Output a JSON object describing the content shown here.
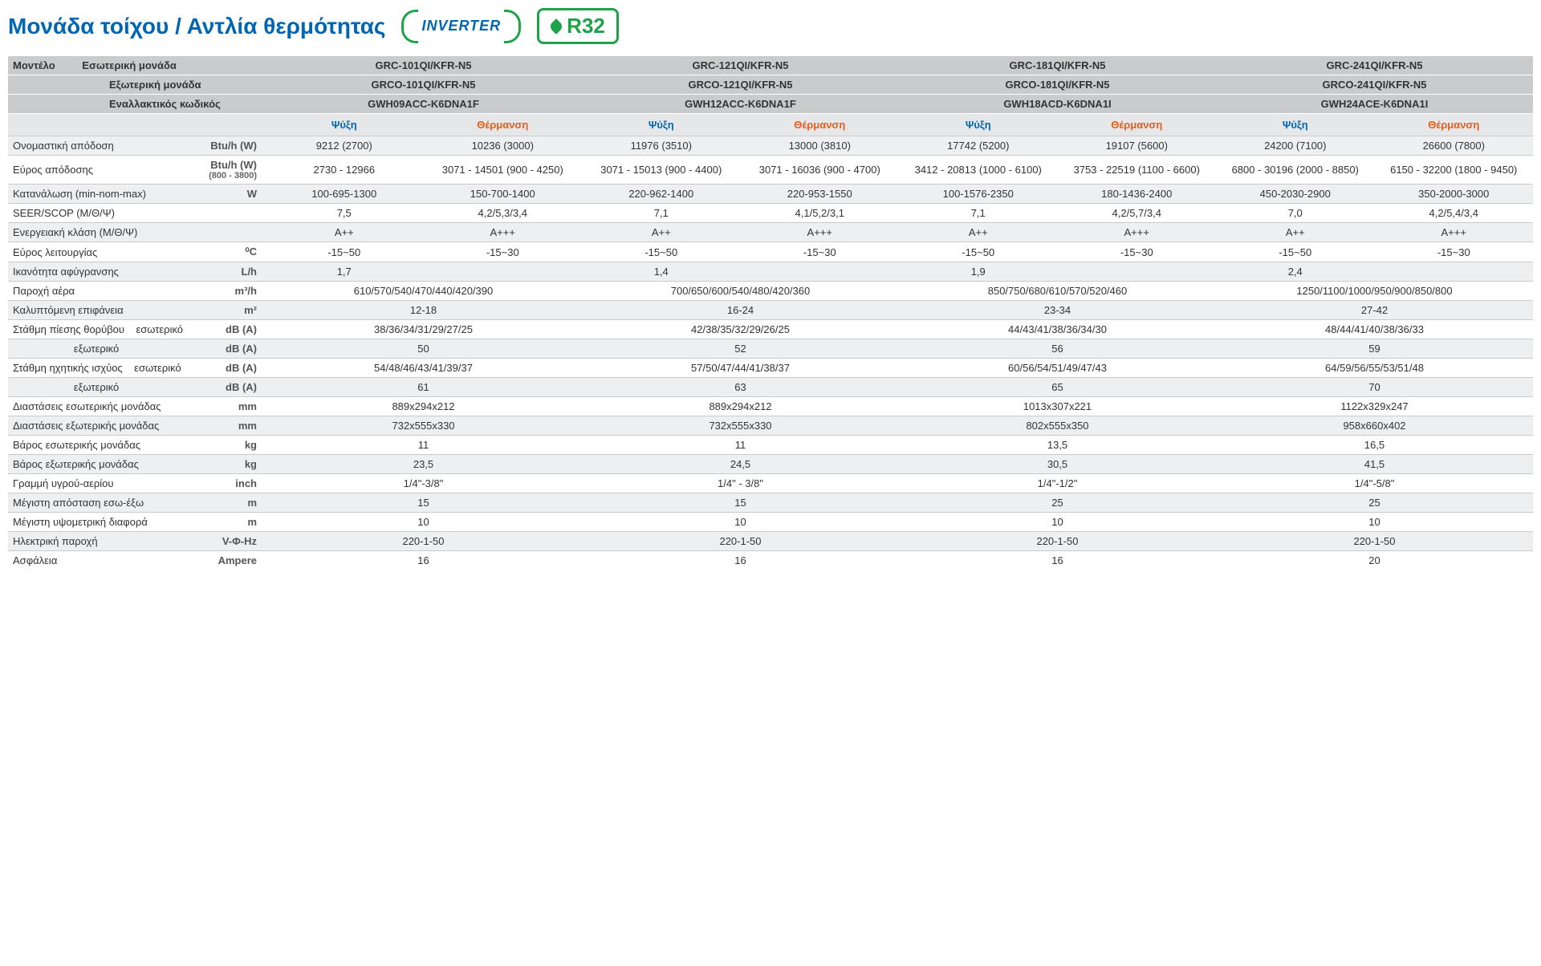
{
  "title": "Μονάδα τοίχου / Αντλία θερμότητας",
  "badges": {
    "inverter": "INVERTER",
    "r32": "32"
  },
  "header": {
    "model_label": "Μοντέλο",
    "rows": [
      {
        "label": "Εσωτερική μονάδα",
        "vals": [
          "GRC-101QI/KFR-N5",
          "GRC-121QI/KFR-N5",
          "GRC-181QI/KFR-N5",
          "GRC-241QI/KFR-N5"
        ]
      },
      {
        "label": "Εξωτερική μονάδα",
        "vals": [
          "GRCO-101QI/KFR-N5",
          "GRCO-121QI/KFR-N5",
          "GRCO-181QI/KFR-N5",
          "GRCO-241QI/KFR-N5"
        ]
      },
      {
        "label": "Εναλλακτικός κωδικός",
        "vals": [
          "GWH09ACC-K6DNA1F",
          "GWH12ACC-K6DNA1F",
          "GWH18ACD-K6DNA1I",
          "GWH24ACE-K6DNA1I"
        ]
      }
    ]
  },
  "modes": {
    "cool": "Ψύξη",
    "heat": "Θέρμανση"
  },
  "rows_split": [
    {
      "label": "Ονομαστική απόδοση",
      "unit": "Btu/h (W)",
      "vals": [
        "9212 (2700)",
        "10236 (3000)",
        "11976 (3510)",
        "13000 (3810)",
        "17742 (5200)",
        "19107 (5600)",
        "24200 (7100)",
        "26600 (7800)"
      ]
    },
    {
      "label": "Εύρος απόδοσης",
      "unit": "Btu/h (W)",
      "unit_note": "(800 - 3800)",
      "vals": [
        "2730 - 12966",
        "3071 - 14501 (900 - 4250)",
        "3071 - 15013 (900 - 4400)",
        "3071 - 16036 (900 - 4700)",
        "3412 - 20813 (1000 - 6100)",
        "3753 - 22519 (1100 - 6600)",
        "6800 - 30196 (2000 - 8850)",
        "6150 - 32200 (1800 - 9450)"
      ]
    },
    {
      "label": "Κατανάλωση (min-nom-max)",
      "unit": "W",
      "vals": [
        "100-695-1300",
        "150-700-1400",
        "220-962-1400",
        "220-953-1550",
        "100-1576-2350",
        "180-1436-2400",
        "450-2030-2900",
        "350-2000-3000"
      ]
    },
    {
      "label": "SEER/SCOP (Μ/Θ/Ψ)",
      "unit": "",
      "vals": [
        "7,5",
        "4,2/5,3/3,4",
        "7,1",
        "4,1/5,2/3,1",
        "7,1",
        "4,2/5,7/3,4",
        "7,0",
        "4,2/5,4/3,4"
      ]
    },
    {
      "label": "Ενεργειακή κλάση (Μ/Θ/Ψ)",
      "unit": "",
      "vals": [
        "A++",
        "A+++",
        "A++",
        "A+++",
        "A++",
        "A+++",
        "A++",
        "A+++"
      ]
    },
    {
      "label": "Εύρος λειτουργίας",
      "unit": "⁰C",
      "vals": [
        "-15~50",
        "-15~30",
        "-15~50",
        "-15~30",
        "-15~50",
        "-15~30",
        "-15~50",
        "-15~30"
      ]
    }
  ],
  "rows_span2_first": [
    {
      "label": "Ικανότητα αφύγρανσης",
      "unit": "L/h",
      "vals": [
        "1,7",
        "",
        "1,4",
        "",
        "1,9",
        "",
        "2,4",
        ""
      ]
    }
  ],
  "rows_merged": [
    {
      "label": "Παροχή αέρα",
      "unit": "m³/h",
      "vals": [
        "610/570/540/470/440/420/390",
        "700/650/600/540/480/420/360",
        "850/750/680/610/570/520/460",
        "1250/1100/1000/950/900/850/800"
      ]
    },
    {
      "label": "Καλυπτόμενη επιφάνεια",
      "unit": "m²",
      "vals": [
        "12-18",
        "16-24",
        "23-34",
        "27-42"
      ]
    },
    {
      "label": "Στάθμη πίεσης θορύβου    εσωτερικό",
      "unit": "dB (A)",
      "vals": [
        "38/36/34/31/29/27/25",
        "42/38/35/32/29/26/25",
        "44/43/41/38/36/34/30",
        "48/44/41/40/38/36/33"
      ]
    },
    {
      "label": "                     εξωτερικό",
      "unit": "dB (A)",
      "vals": [
        "50",
        "52",
        "56",
        "59"
      ]
    },
    {
      "label": "Στάθμη ηχητικής ισχύος    εσωτερικό",
      "unit": "dB (A)",
      "vals": [
        "54/48/46/43/41/39/37",
        "57/50/47/44/41/38/37",
        "60/56/54/51/49/47/43",
        "64/59/56/55/53/51/48"
      ]
    },
    {
      "label": "                     εξωτερικό",
      "unit": "dB (A)",
      "vals": [
        "61",
        "63",
        "65",
        "70"
      ]
    },
    {
      "label": "Διαστάσεις εσωτερικής μονάδας",
      "unit": "mm",
      "vals": [
        "889x294x212",
        "889x294x212",
        "1013x307x221",
        "1122x329x247"
      ]
    },
    {
      "label": "Διαστάσεις εξωτερικής μονάδας",
      "unit": "mm",
      "vals": [
        "732x555x330",
        "732x555x330",
        "802x555x350",
        "958x660x402"
      ]
    },
    {
      "label": "Βάρος εσωτερικής μονάδας",
      "unit": "kg",
      "vals": [
        "11",
        "11",
        "13,5",
        "16,5"
      ]
    },
    {
      "label": "Βάρος εξωτερικής μονάδας",
      "unit": "kg",
      "vals": [
        "23,5",
        "24,5",
        "30,5",
        "41,5"
      ]
    },
    {
      "label": "Γραμμή υγρού-αερίου",
      "unit": "inch",
      "vals": [
        "1/4\"-3/8\"",
        "1/4\" - 3/8\"",
        "1/4\"-1/2\"",
        "1/4\"-5/8\""
      ]
    },
    {
      "label": "Μέγιστη απόσταση εσω-έξω",
      "unit": "m",
      "vals": [
        "15",
        "15",
        "25",
        "25"
      ]
    },
    {
      "label": "Μέγιστη υψομετρική διαφορά",
      "unit": "m",
      "vals": [
        "10",
        "10",
        "10",
        "10"
      ]
    },
    {
      "label": "Ηλεκτρική παροχή",
      "unit": "V-Φ-Hz",
      "vals": [
        "220-1-50",
        "220-1-50",
        "220-1-50",
        "220-1-50"
      ]
    },
    {
      "label": "Ασφάλεια",
      "unit": "Ampere",
      "vals": [
        "16",
        "16",
        "16",
        "20"
      ]
    }
  ]
}
